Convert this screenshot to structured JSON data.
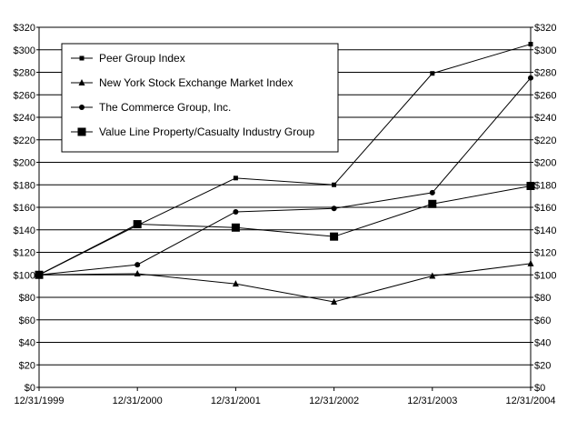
{
  "chart_data": {
    "type": "line",
    "x_categories": [
      "12/31/1999",
      "12/31/2000",
      "12/31/2001",
      "12/31/2002",
      "12/31/2003",
      "12/31/2004"
    ],
    "ylim": [
      0,
      320
    ],
    "y_tick_step": 20,
    "y_tick_labels": [
      "$0",
      "$20",
      "$40",
      "$60",
      "$80",
      "$100",
      "$120",
      "$140",
      "$160",
      "$180",
      "$200",
      "$220",
      "$240",
      "$260",
      "$280",
      "$300",
      "$320"
    ],
    "grid": "horizontal",
    "legend_position": "top-left",
    "series": [
      {
        "name": "Peer Group Index",
        "marker": "small-square",
        "values": [
          100,
          144,
          186,
          180,
          279,
          305
        ]
      },
      {
        "name": "New York Stock Exchange Market Index",
        "marker": "triangle",
        "values": [
          100,
          101,
          92,
          76,
          99,
          110
        ]
      },
      {
        "name": "The Commerce Group, Inc.",
        "marker": "circle",
        "values": [
          100,
          109,
          156,
          159,
          173,
          275
        ]
      },
      {
        "name": "Value Line Property/Casualty Industry Group",
        "marker": "large-square",
        "values": [
          100,
          145,
          142,
          134,
          163,
          179
        ]
      }
    ],
    "colors": {
      "line": "#000000",
      "grid": "#000000",
      "background": "#ffffff"
    }
  }
}
